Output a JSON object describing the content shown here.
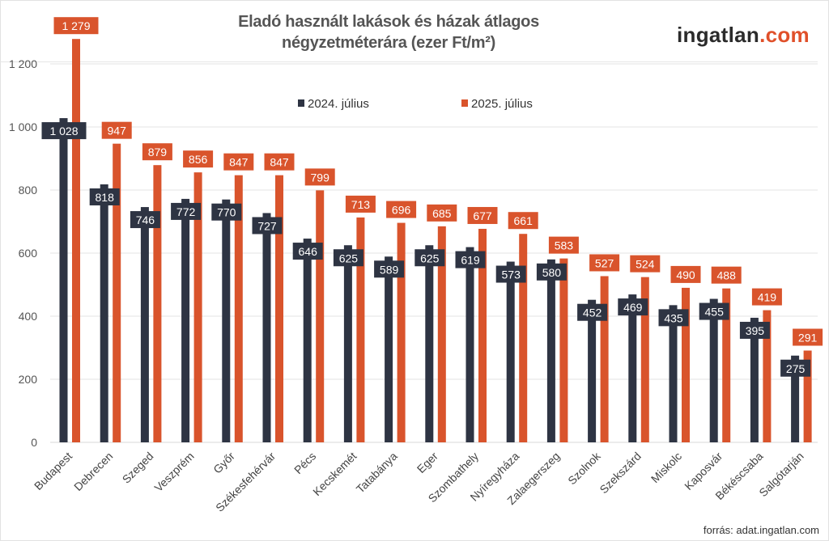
{
  "title_line1": "Eladó használt lakások és házak átlagos",
  "title_line2": "négyzetméterára (ezer Ft/m²)",
  "logo": {
    "main": "ingatlan",
    "suffix": ".com"
  },
  "source": "forrás: adat.ingatlan.com",
  "chart_data": {
    "type": "bar",
    "title": "Eladó használt lakások és házak átlagos négyzetméterára (ezer Ft/m²)",
    "categories": [
      "Budapest",
      "Debrecen",
      "Szeged",
      "Veszprém",
      "Győr",
      "Székesfehérvár",
      "Pécs",
      "Kecskemét",
      "Tatabánya",
      "Eger",
      "Szombathely",
      "Nyíregyháza",
      "Zalaegerszeg",
      "Szolnok",
      "Szekszárd",
      "Miskolc",
      "Kaposvár",
      "Békéscsaba",
      "Salgótarján"
    ],
    "series": [
      {
        "name": "2024. július",
        "color": "#2e3443",
        "values": [
          1028,
          818,
          746,
          772,
          770,
          727,
          646,
          625,
          589,
          625,
          619,
          573,
          580,
          452,
          469,
          435,
          455,
          395,
          275
        ]
      },
      {
        "name": "2025. július",
        "color": "#d9542c",
        "values": [
          1279,
          947,
          879,
          856,
          847,
          847,
          799,
          713,
          696,
          685,
          677,
          661,
          583,
          527,
          524,
          490,
          488,
          419,
          291
        ]
      }
    ],
    "yticks": [
      0,
      200,
      400,
      600,
      800,
      1000,
      1200
    ],
    "ytick_labels": [
      "0",
      "200",
      "400",
      "600",
      "800",
      "1 000",
      "1 200"
    ],
    "ylim": [
      0,
      1300
    ],
    "grid": true,
    "legend": "top-center",
    "data_labels": true
  }
}
